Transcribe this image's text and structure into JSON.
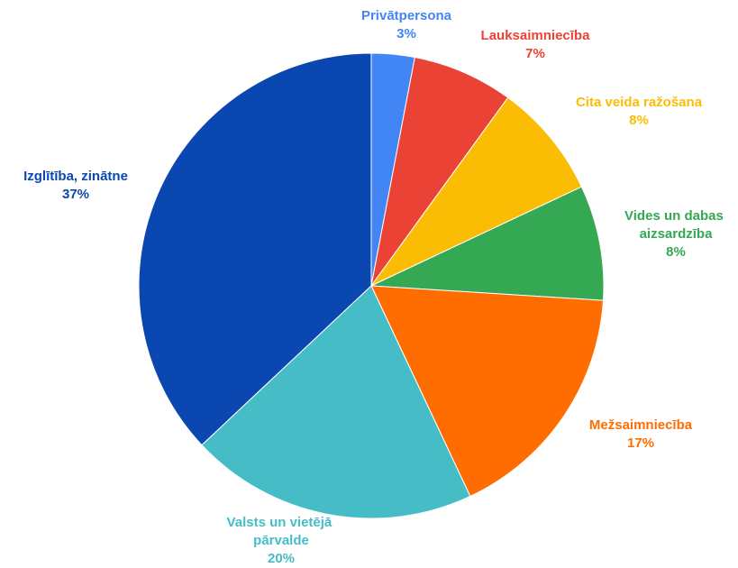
{
  "chart_data": {
    "type": "pie",
    "categories": [
      "Privātpersona",
      "Lauksaimniecība",
      "Cita veida ražošana",
      "Vides un dabas aizsardzība",
      "Mežsaimniecība",
      "Valsts un vietējā pārvalde",
      "Izglītība, zinātne"
    ],
    "values": [
      3,
      7,
      8,
      8,
      17,
      20,
      37
    ],
    "value_labels": [
      "3%",
      "7%",
      "8%",
      "8%",
      "17%",
      "20%",
      "37%"
    ],
    "colors": [
      "#4285f4",
      "#ea4335",
      "#fbbc04",
      "#34a853",
      "#ff6d01",
      "#46bdc6",
      "#0b47b0"
    ]
  }
}
